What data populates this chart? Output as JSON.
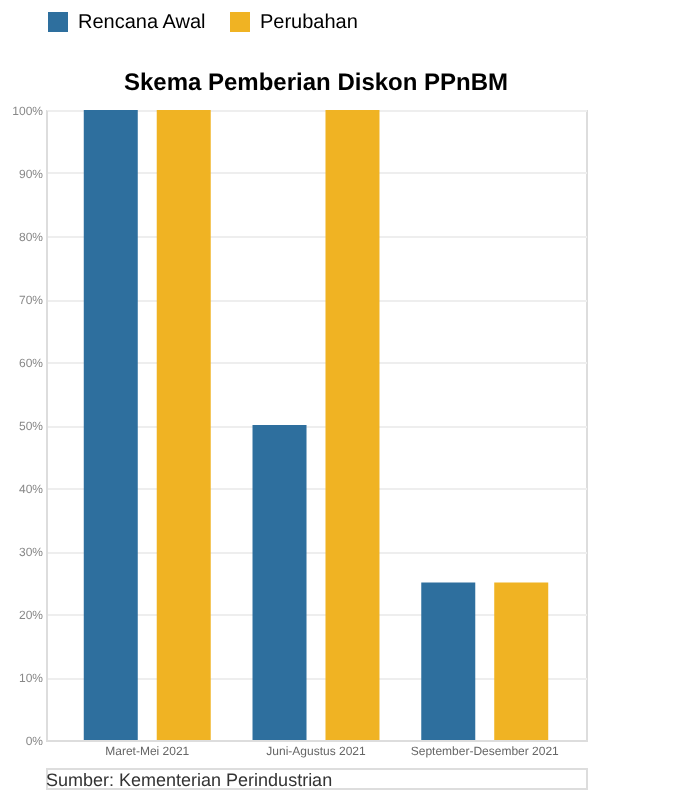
{
  "chart_data": {
    "type": "bar",
    "title": "Skema Pemberian Diskon PPnBM",
    "categories": [
      "Maret-Mei 2021",
      "Juni-Agustus 2021",
      "September-Desember 2021"
    ],
    "series": [
      {
        "name": "Rencana Awal",
        "color": "#2e6f9e",
        "values": [
          100,
          50,
          25
        ]
      },
      {
        "name": "Perubahan",
        "color": "#f0b323",
        "values": [
          100,
          100,
          25
        ]
      }
    ],
    "ylim": [
      0,
      100
    ],
    "yticks": [
      {
        "value": 0,
        "label": "0%"
      },
      {
        "value": 10,
        "label": "10%"
      },
      {
        "value": 20,
        "label": "20%"
      },
      {
        "value": 30,
        "label": "30%"
      },
      {
        "value": 40,
        "label": "40%"
      },
      {
        "value": 50,
        "label": "50%"
      },
      {
        "value": 60,
        "label": "60%"
      },
      {
        "value": 70,
        "label": "70%"
      },
      {
        "value": 80,
        "label": "80%"
      },
      {
        "value": 90,
        "label": "90%"
      },
      {
        "value": 100,
        "label": "100%"
      }
    ],
    "grid": "y",
    "legend": "top left",
    "annotations": [
      "Sumber: Kementerian Perindustrian"
    ]
  }
}
